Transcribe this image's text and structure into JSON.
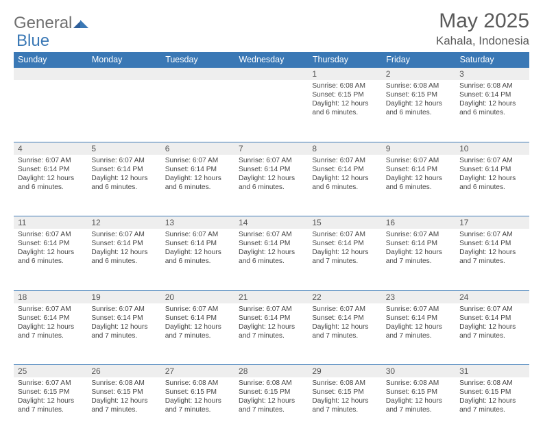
{
  "brand": {
    "general": "General",
    "blue": "Blue"
  },
  "title": "May 2025",
  "location": "Kahala, Indonesia",
  "colors": {
    "header_bg": "#3a78b5",
    "header_text": "#ffffff",
    "rule": "#3a78b5",
    "daynum_bg": "#eeeeee",
    "text": "#444444",
    "logo_gray": "#6f6f6f",
    "logo_blue": "#3a78b5"
  },
  "day_headers": [
    "Sunday",
    "Monday",
    "Tuesday",
    "Wednesday",
    "Thursday",
    "Friday",
    "Saturday"
  ],
  "weeks": [
    [
      {
        "n": "",
        "sr": "",
        "ss": "",
        "dl": ""
      },
      {
        "n": "",
        "sr": "",
        "ss": "",
        "dl": ""
      },
      {
        "n": "",
        "sr": "",
        "ss": "",
        "dl": ""
      },
      {
        "n": "",
        "sr": "",
        "ss": "",
        "dl": ""
      },
      {
        "n": "1",
        "sr": "Sunrise: 6:08 AM",
        "ss": "Sunset: 6:15 PM",
        "dl": "Daylight: 12 hours and 6 minutes."
      },
      {
        "n": "2",
        "sr": "Sunrise: 6:08 AM",
        "ss": "Sunset: 6:15 PM",
        "dl": "Daylight: 12 hours and 6 minutes."
      },
      {
        "n": "3",
        "sr": "Sunrise: 6:08 AM",
        "ss": "Sunset: 6:14 PM",
        "dl": "Daylight: 12 hours and 6 minutes."
      }
    ],
    [
      {
        "n": "4",
        "sr": "Sunrise: 6:07 AM",
        "ss": "Sunset: 6:14 PM",
        "dl": "Daylight: 12 hours and 6 minutes."
      },
      {
        "n": "5",
        "sr": "Sunrise: 6:07 AM",
        "ss": "Sunset: 6:14 PM",
        "dl": "Daylight: 12 hours and 6 minutes."
      },
      {
        "n": "6",
        "sr": "Sunrise: 6:07 AM",
        "ss": "Sunset: 6:14 PM",
        "dl": "Daylight: 12 hours and 6 minutes."
      },
      {
        "n": "7",
        "sr": "Sunrise: 6:07 AM",
        "ss": "Sunset: 6:14 PM",
        "dl": "Daylight: 12 hours and 6 minutes."
      },
      {
        "n": "8",
        "sr": "Sunrise: 6:07 AM",
        "ss": "Sunset: 6:14 PM",
        "dl": "Daylight: 12 hours and 6 minutes."
      },
      {
        "n": "9",
        "sr": "Sunrise: 6:07 AM",
        "ss": "Sunset: 6:14 PM",
        "dl": "Daylight: 12 hours and 6 minutes."
      },
      {
        "n": "10",
        "sr": "Sunrise: 6:07 AM",
        "ss": "Sunset: 6:14 PM",
        "dl": "Daylight: 12 hours and 6 minutes."
      }
    ],
    [
      {
        "n": "11",
        "sr": "Sunrise: 6:07 AM",
        "ss": "Sunset: 6:14 PM",
        "dl": "Daylight: 12 hours and 6 minutes."
      },
      {
        "n": "12",
        "sr": "Sunrise: 6:07 AM",
        "ss": "Sunset: 6:14 PM",
        "dl": "Daylight: 12 hours and 6 minutes."
      },
      {
        "n": "13",
        "sr": "Sunrise: 6:07 AM",
        "ss": "Sunset: 6:14 PM",
        "dl": "Daylight: 12 hours and 6 minutes."
      },
      {
        "n": "14",
        "sr": "Sunrise: 6:07 AM",
        "ss": "Sunset: 6:14 PM",
        "dl": "Daylight: 12 hours and 6 minutes."
      },
      {
        "n": "15",
        "sr": "Sunrise: 6:07 AM",
        "ss": "Sunset: 6:14 PM",
        "dl": "Daylight: 12 hours and 7 minutes."
      },
      {
        "n": "16",
        "sr": "Sunrise: 6:07 AM",
        "ss": "Sunset: 6:14 PM",
        "dl": "Daylight: 12 hours and 7 minutes."
      },
      {
        "n": "17",
        "sr": "Sunrise: 6:07 AM",
        "ss": "Sunset: 6:14 PM",
        "dl": "Daylight: 12 hours and 7 minutes."
      }
    ],
    [
      {
        "n": "18",
        "sr": "Sunrise: 6:07 AM",
        "ss": "Sunset: 6:14 PM",
        "dl": "Daylight: 12 hours and 7 minutes."
      },
      {
        "n": "19",
        "sr": "Sunrise: 6:07 AM",
        "ss": "Sunset: 6:14 PM",
        "dl": "Daylight: 12 hours and 7 minutes."
      },
      {
        "n": "20",
        "sr": "Sunrise: 6:07 AM",
        "ss": "Sunset: 6:14 PM",
        "dl": "Daylight: 12 hours and 7 minutes."
      },
      {
        "n": "21",
        "sr": "Sunrise: 6:07 AM",
        "ss": "Sunset: 6:14 PM",
        "dl": "Daylight: 12 hours and 7 minutes."
      },
      {
        "n": "22",
        "sr": "Sunrise: 6:07 AM",
        "ss": "Sunset: 6:14 PM",
        "dl": "Daylight: 12 hours and 7 minutes."
      },
      {
        "n": "23",
        "sr": "Sunrise: 6:07 AM",
        "ss": "Sunset: 6:14 PM",
        "dl": "Daylight: 12 hours and 7 minutes."
      },
      {
        "n": "24",
        "sr": "Sunrise: 6:07 AM",
        "ss": "Sunset: 6:14 PM",
        "dl": "Daylight: 12 hours and 7 minutes."
      }
    ],
    [
      {
        "n": "25",
        "sr": "Sunrise: 6:07 AM",
        "ss": "Sunset: 6:15 PM",
        "dl": "Daylight: 12 hours and 7 minutes."
      },
      {
        "n": "26",
        "sr": "Sunrise: 6:08 AM",
        "ss": "Sunset: 6:15 PM",
        "dl": "Daylight: 12 hours and 7 minutes."
      },
      {
        "n": "27",
        "sr": "Sunrise: 6:08 AM",
        "ss": "Sunset: 6:15 PM",
        "dl": "Daylight: 12 hours and 7 minutes."
      },
      {
        "n": "28",
        "sr": "Sunrise: 6:08 AM",
        "ss": "Sunset: 6:15 PM",
        "dl": "Daylight: 12 hours and 7 minutes."
      },
      {
        "n": "29",
        "sr": "Sunrise: 6:08 AM",
        "ss": "Sunset: 6:15 PM",
        "dl": "Daylight: 12 hours and 7 minutes."
      },
      {
        "n": "30",
        "sr": "Sunrise: 6:08 AM",
        "ss": "Sunset: 6:15 PM",
        "dl": "Daylight: 12 hours and 7 minutes."
      },
      {
        "n": "31",
        "sr": "Sunrise: 6:08 AM",
        "ss": "Sunset: 6:15 PM",
        "dl": "Daylight: 12 hours and 7 minutes."
      }
    ]
  ]
}
